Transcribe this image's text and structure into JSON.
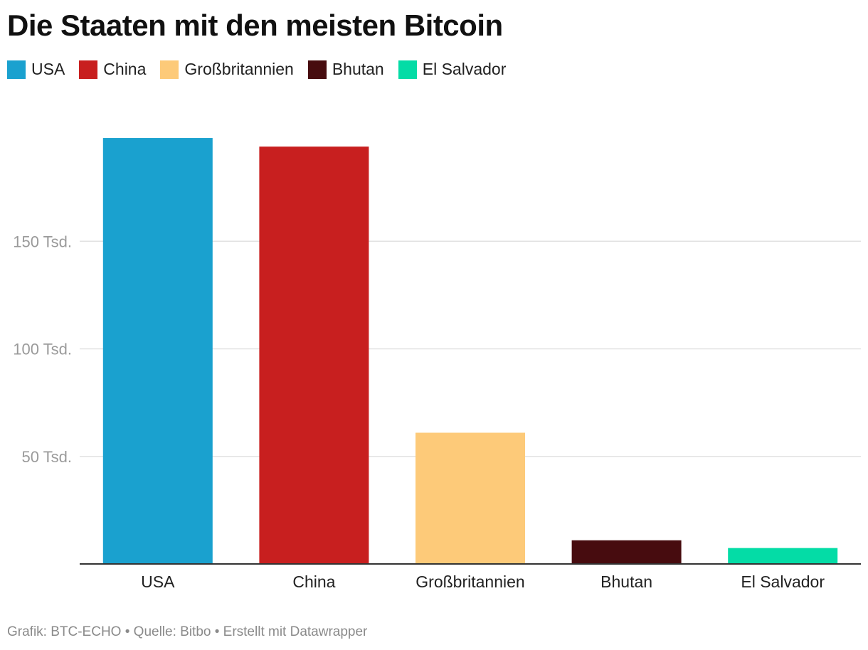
{
  "chart_data": {
    "type": "bar",
    "title": "Die Staaten mit den meisten Bitcoin",
    "categories": [
      "USA",
      "China",
      "Großbritannien",
      "Bhutan",
      "El Salvador"
    ],
    "values": [
      198000,
      194000,
      61000,
      11000,
      7400
    ],
    "colors": [
      "#1aa1cf",
      "#c81f1f",
      "#fdca79",
      "#470c0f",
      "#04dca6"
    ],
    "legend": [
      "USA",
      "China",
      "Großbritannien",
      "Bhutan",
      "El Salvador"
    ],
    "legend_position": "top-left",
    "yticks": [
      {
        "value": 50000,
        "label": "50 Tsd."
      },
      {
        "value": 100000,
        "label": "100 Tsd."
      },
      {
        "value": 150000,
        "label": "150 Tsd."
      }
    ],
    "ylim": [
      0,
      200000
    ],
    "xlabel": "",
    "ylabel": "",
    "grid": true
  },
  "footer": "Grafik: BTC-ECHO • Quelle: Bitbo • Erstellt mit Datawrapper"
}
